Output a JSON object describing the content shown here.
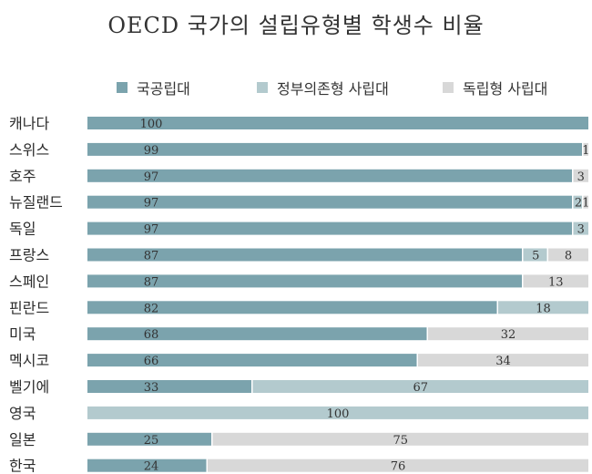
{
  "chart_data": {
    "type": "bar",
    "orientation": "horizontal",
    "stacked": true,
    "title": "OECD 국가의 설립유형별 학생수 비율",
    "legend_position": "top",
    "categories": [
      "캐나다",
      "스위스",
      "호주",
      "뉴질랜드",
      "독일",
      "프랑스",
      "스페인",
      "핀란드",
      "미국",
      "멕시코",
      "벨기에",
      "영국",
      "일본",
      "한국"
    ],
    "series": [
      {
        "name": "국공립대",
        "color": "#7ba3ad",
        "values": [
          100,
          99,
          97,
          97,
          97,
          87,
          87,
          82,
          68,
          66,
          33,
          0,
          25,
          24
        ]
      },
      {
        "name": "정부의존형 사립대",
        "color": "#b3cace",
        "values": [
          0,
          0,
          0,
          2,
          3,
          5,
          0,
          18,
          0,
          0,
          67,
          100,
          0,
          0
        ]
      },
      {
        "name": "독립형 사립대",
        "color": "#d8d8d8",
        "values": [
          0,
          1,
          3,
          1,
          0,
          8,
          13,
          0,
          32,
          34,
          0,
          0,
          75,
          76
        ]
      }
    ],
    "xlim": [
      0,
      100
    ],
    "grid": false
  }
}
